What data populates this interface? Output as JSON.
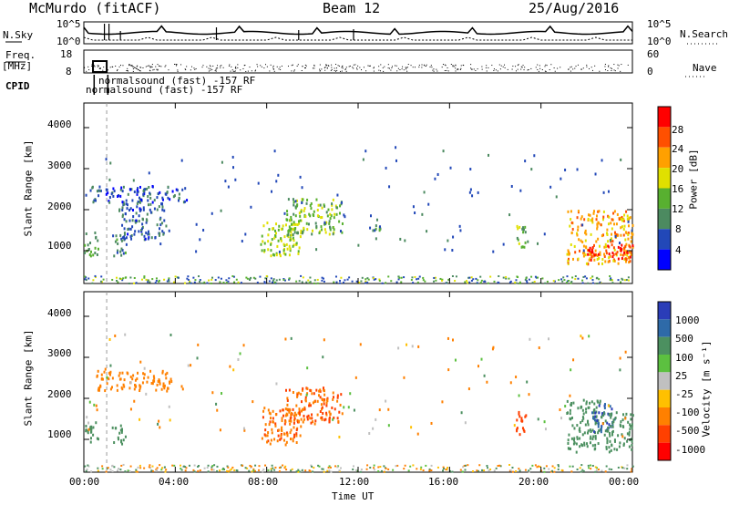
{
  "header": {
    "station": "McMurdo (fitACF)",
    "beam": "Beam 12",
    "date": "25/Aug/2016"
  },
  "left_labels": {
    "nsky": "N.Sky",
    "freq": "Freq.",
    "freq_unit": "[MHz]",
    "cpid": "CPID"
  },
  "right_labels": {
    "nsearch": "N.Search",
    "nave": "Nave"
  },
  "noise_panel": {
    "left_ticks": [
      "10^5",
      "10^0"
    ],
    "right_ticks": [
      "10^5",
      "10^0"
    ]
  },
  "freq_panel": {
    "left_ticks": [
      "18",
      "8"
    ],
    "right_ticks": [
      "60",
      "0"
    ]
  },
  "cpid_text": [
    "normalsound (fast) -157 RF",
    "normalsound (fast) -157 RF"
  ],
  "x_axis": {
    "ticks": [
      "00:00",
      "04:00",
      "08:00",
      "12:00",
      "16:00",
      "20:00",
      "00:00"
    ],
    "label": "Time UT"
  },
  "panel_power": {
    "ylabel": "Slant Range [km]",
    "yticks": [
      "1000",
      "2000",
      "3000",
      "4000"
    ]
  },
  "panel_velocity": {
    "ylabel": "Slant Range [km]",
    "yticks": [
      "1000",
      "2000",
      "3000",
      "4000"
    ]
  },
  "colorbar_power": {
    "label": "Power [dB]",
    "ticks": [
      "4",
      "8",
      "12",
      "16",
      "20",
      "24",
      "28"
    ],
    "colors": [
      "#0000ff",
      "#2248b8",
      "#4c8a60",
      "#58b030",
      "#e0e000",
      "#ffa000",
      "#ff5000",
      "#ff0000"
    ]
  },
  "colorbar_velocity": {
    "label": "Velocity [m s⁻¹]",
    "ticks": [
      "1000",
      "500",
      "100",
      "25",
      "-25",
      "-100",
      "-500",
      "-1000"
    ],
    "colors": [
      "#2a3db8",
      "#2e6aa8",
      "#4c9060",
      "#5cc040",
      "#c0c0c0",
      "#ffc000",
      "#ff8000",
      "#ff4000",
      "#ff0000"
    ]
  },
  "chart_data": [
    {
      "type": "heatmap",
      "quantity": "Power",
      "unit": "dB",
      "xlabel": "Time UT",
      "ylabel": "Slant Range [km]",
      "xlim": [
        0,
        24
      ],
      "ylim": [
        200,
        4600
      ],
      "clim": [
        0,
        30
      ],
      "patches": [
        {
          "t0": 0.0,
          "t1": 0.6,
          "r0": 900,
          "r1": 1500,
          "level": 12
        },
        {
          "t0": 1.2,
          "t1": 1.8,
          "r0": 900,
          "r1": 1400,
          "level": 10
        },
        {
          "t0": 0.2,
          "t1": 4.5,
          "r0": 2200,
          "r1": 2600,
          "level": 6
        },
        {
          "t0": 1.5,
          "t1": 3.5,
          "r0": 1300,
          "r1": 2200,
          "level": 7
        },
        {
          "t0": 7.7,
          "t1": 9.5,
          "r0": 900,
          "r1": 1800,
          "level": 16
        },
        {
          "t0": 8.8,
          "t1": 11.3,
          "r0": 1400,
          "r1": 2300,
          "level": 14
        },
        {
          "t0": 12.6,
          "t1": 13.0,
          "r0": 1500,
          "r1": 1800,
          "level": 12
        },
        {
          "t0": 18.9,
          "t1": 19.4,
          "r0": 1100,
          "r1": 1700,
          "level": 14
        },
        {
          "t0": 21.1,
          "t1": 24.0,
          "r0": 700,
          "r1": 2000,
          "level": 22
        },
        {
          "t0": 22.0,
          "t1": 24.0,
          "r0": 800,
          "r1": 1200,
          "level": 28
        }
      ]
    },
    {
      "type": "heatmap",
      "quantity": "Velocity",
      "unit": "m s^-1",
      "xlabel": "Time UT",
      "ylabel": "Slant Range [km]",
      "xlim": [
        0,
        24
      ],
      "ylim": [
        200,
        4600
      ],
      "clim": [
        -1000,
        1000
      ],
      "patches": [
        {
          "t0": 0.0,
          "t1": 0.6,
          "r0": 900,
          "r1": 1500,
          "level": 150
        },
        {
          "t0": 1.2,
          "t1": 1.8,
          "r0": 900,
          "r1": 1400,
          "level": 120
        },
        {
          "t0": 0.5,
          "t1": 3.8,
          "r0": 2200,
          "r1": 2700,
          "level": -200
        },
        {
          "t0": 7.7,
          "t1": 9.5,
          "r0": 900,
          "r1": 1800,
          "level": -250
        },
        {
          "t0": 8.8,
          "t1": 11.3,
          "r0": 1400,
          "r1": 2300,
          "level": -300
        },
        {
          "t0": 18.9,
          "t1": 19.4,
          "r0": 1100,
          "r1": 1700,
          "level": -500
        },
        {
          "t0": 21.1,
          "t1": 22.6,
          "r0": 700,
          "r1": 2000,
          "level": 150
        },
        {
          "t0": 22.2,
          "t1": 23.2,
          "r0": 1200,
          "r1": 1900,
          "level": 700
        },
        {
          "t0": 22.6,
          "t1": 24.0,
          "r0": 700,
          "r1": 1700,
          "level": 200
        }
      ]
    }
  ]
}
